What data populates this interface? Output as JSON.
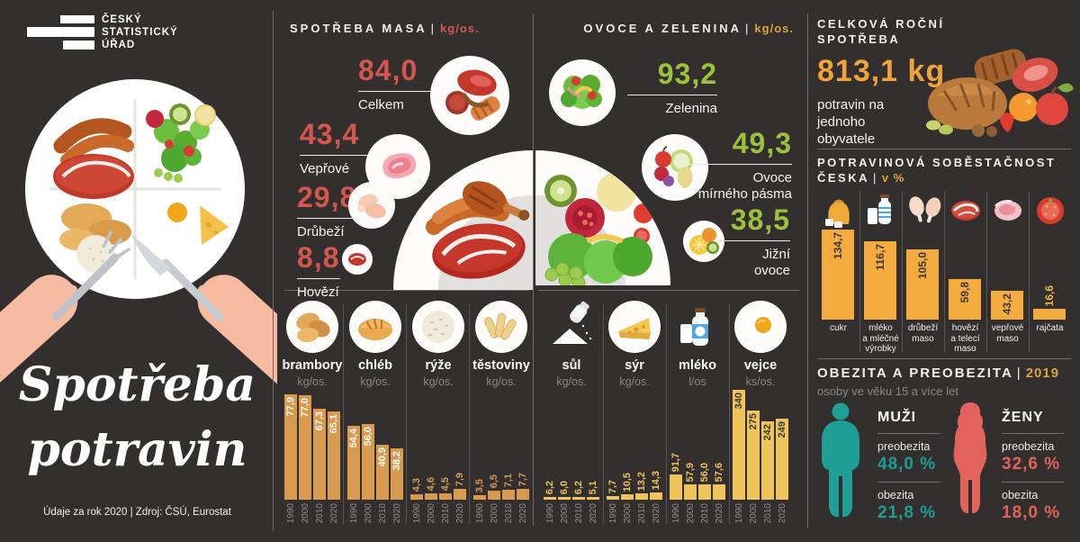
{
  "colors": {
    "background": "#322F2E",
    "red": "#D4574F",
    "green": "#9CC23C",
    "gold": "#EFA33B",
    "bar_orange": "#D89A4F",
    "bar_yellow": "#EFC45B",
    "bar_amber": "#F5AC3E",
    "teal": "#1E9E95",
    "coral": "#E2635C"
  },
  "logo": {
    "line1": "ČESKÝ",
    "line2": "STATISTICKÝ",
    "line3": "ÚŘAD"
  },
  "left": {
    "title_line1": "Spotřeba",
    "title_line2": "potravin",
    "footer": "Údaje za rok 2020 | Zdroj: ČSÚ, Eurostat"
  },
  "meat": {
    "title": "SPOTŘEBA MASA",
    "sep": "|",
    "unit": "kg/os.",
    "items": [
      {
        "value": "84,0",
        "label": "Celkem"
      },
      {
        "value": "43,4",
        "label": "Vepřové"
      },
      {
        "value": "29,8",
        "label": "Drůbeží"
      },
      {
        "value": "8,8",
        "label": "Hovězí"
      }
    ]
  },
  "produce": {
    "title": "OVOCE A ZELENINA",
    "sep": "|",
    "unit": "kg/os.",
    "items": [
      {
        "value": "93,2",
        "label_lines": [
          "Zelenina",
          ""
        ]
      },
      {
        "value": "49,3",
        "label_lines": [
          "Ovoce",
          "mírného pásma"
        ]
      },
      {
        "value": "38,5",
        "label_lines": [
          "Jižní",
          "ovoce"
        ]
      }
    ]
  },
  "annual": {
    "title_line1": "CELKOVÁ ROČNÍ",
    "title_line2": "SPOTŘEBA",
    "value": "813,1 kg",
    "desc": "potravin na jednoho obyvatele"
  },
  "selfsufficiency": {
    "title_line1": "POTRAVINOVÁ SOBĚSTAČNOST",
    "title_line2": "ČESKA",
    "sep": "|",
    "unit": "v %",
    "bars": [
      {
        "id": "cukr",
        "label_lines": [
          "cukr"
        ],
        "value": 134.7,
        "display": "134,7"
      },
      {
        "id": "mleko",
        "label_lines": [
          "mléko",
          "a mléčné",
          "výrobky"
        ],
        "value": 116.7,
        "display": "116,7"
      },
      {
        "id": "drubezi",
        "label_lines": [
          "drůbeží",
          "maso"
        ],
        "value": 105.0,
        "display": "105,0"
      },
      {
        "id": "hovezi",
        "label_lines": [
          "hovězí",
          "a telecí",
          "maso"
        ],
        "value": 59.8,
        "display": "59,8"
      },
      {
        "id": "veprove",
        "label_lines": [
          "vepřové",
          "maso"
        ],
        "value": 43.2,
        "display": "43,2"
      },
      {
        "id": "rajcata",
        "label_lines": [
          "rajčata"
        ],
        "value": 16.6,
        "display": "16,6"
      }
    ]
  },
  "obesity": {
    "title": "OBEZITA A PREOBEZITA",
    "sep": "|",
    "year": "2019",
    "subtitle": "osoby ve věku 15 a více let",
    "men": {
      "name": "MUŽI",
      "pre_label": "preobezita",
      "pre_value": "48,0 %",
      "ob_label": "obezita",
      "ob_value": "21,8 %"
    },
    "women": {
      "name": "ŽENY",
      "pre_label": "preobezita",
      "pre_value": "32,6 %",
      "ob_label": "obezita",
      "ob_value": "18,0 %"
    }
  },
  "mini_charts": {
    "years": [
      "1990",
      "2000",
      "2010",
      "2020"
    ],
    "charts": [
      {
        "id": "brambory",
        "label": "brambory",
        "unit": "kg/os.",
        "values": [
          77.9,
          77.0,
          67.3,
          65.1
        ],
        "labels": [
          "77,9",
          "77,0",
          "67,3",
          "65,1"
        ]
      },
      {
        "id": "chleb",
        "label": "chléb",
        "unit": "kg/os.",
        "values": [
          54.4,
          56.0,
          40.9,
          38.2
        ],
        "labels": [
          "54,4",
          "56,0",
          "40,9",
          "38,2"
        ]
      },
      {
        "id": "ryze",
        "label": "rýže",
        "unit": "kg/os.",
        "values": [
          4.3,
          4.6,
          4.5,
          7.9
        ],
        "labels": [
          "4,3",
          "4,6",
          "4,5",
          "7,9"
        ]
      },
      {
        "id": "testoviny",
        "label": "těstoviny",
        "unit": "kg/os.",
        "values": [
          3.5,
          6.5,
          7.1,
          7.7
        ],
        "labels": [
          "3,5",
          "6,5",
          "7,1",
          "7,7"
        ]
      },
      {
        "id": "sul",
        "label": "sůl",
        "unit": "kg/os.",
        "values": [
          6.2,
          6.0,
          6.2,
          5.1
        ],
        "labels": [
          "6,2",
          "6,0",
          "6,2",
          "5,1"
        ]
      },
      {
        "id": "syr",
        "label": "sýr",
        "unit": "kg/os.",
        "values": [
          7.7,
          10.5,
          13.2,
          14.3
        ],
        "labels": [
          "7,7",
          "10,5",
          "13,2",
          "14,3"
        ]
      },
      {
        "id": "mleko",
        "label": "mléko",
        "unit": "l/os",
        "values": [
          91.7,
          57.9,
          56.0,
          57.6
        ],
        "labels": [
          "91,7",
          "57,9",
          "56,0",
          "57,6"
        ]
      },
      {
        "id": "vejce",
        "label": "vejce",
        "unit": "ks/os.",
        "values": [
          340,
          275,
          242,
          249
        ],
        "labels": [
          "340",
          "275",
          "242",
          "249"
        ]
      }
    ]
  },
  "chart_data": [
    {
      "type": "bar",
      "title": "Spotřeba masa",
      "ylabel": "kg/os.",
      "categories": [
        "Celkem",
        "Vepřové",
        "Drůbeží",
        "Hovězí"
      ],
      "values": [
        84.0,
        43.4,
        29.8,
        8.8
      ]
    },
    {
      "type": "bar",
      "title": "Ovoce a zelenina",
      "ylabel": "kg/os.",
      "categories": [
        "Zelenina",
        "Ovoce mírného pásma",
        "Jižní ovoce"
      ],
      "values": [
        93.2,
        49.3,
        38.5
      ]
    },
    {
      "type": "bar",
      "title": "Potravinová soběstačnost Česka",
      "ylabel": "%",
      "categories": [
        "cukr",
        "mléko a mléčné výrobky",
        "drůbeží maso",
        "hovězí a telecí maso",
        "vepřové maso",
        "rajčata"
      ],
      "values": [
        134.7,
        116.7,
        105.0,
        59.8,
        43.2,
        16.6
      ]
    },
    {
      "type": "bar",
      "title": "brambory",
      "ylabel": "kg/os.",
      "categories": [
        "1990",
        "2000",
        "2010",
        "2020"
      ],
      "values": [
        77.9,
        77.0,
        67.3,
        65.1
      ]
    },
    {
      "type": "bar",
      "title": "chléb",
      "ylabel": "kg/os.",
      "categories": [
        "1990",
        "2000",
        "2010",
        "2020"
      ],
      "values": [
        54.4,
        56.0,
        40.9,
        38.2
      ]
    },
    {
      "type": "bar",
      "title": "rýže",
      "ylabel": "kg/os.",
      "categories": [
        "1990",
        "2000",
        "2010",
        "2020"
      ],
      "values": [
        4.3,
        4.6,
        4.5,
        7.9
      ]
    },
    {
      "type": "bar",
      "title": "těstoviny",
      "ylabel": "kg/os.",
      "categories": [
        "1990",
        "2000",
        "2010",
        "2020"
      ],
      "values": [
        3.5,
        6.5,
        7.1,
        7.7
      ]
    },
    {
      "type": "bar",
      "title": "sůl",
      "ylabel": "kg/os.",
      "categories": [
        "1990",
        "2000",
        "2010",
        "2020"
      ],
      "values": [
        6.2,
        6.0,
        6.2,
        5.1
      ]
    },
    {
      "type": "bar",
      "title": "sýr",
      "ylabel": "kg/os.",
      "categories": [
        "1990",
        "2000",
        "2010",
        "2020"
      ],
      "values": [
        7.7,
        10.5,
        13.2,
        14.3
      ]
    },
    {
      "type": "bar",
      "title": "mléko",
      "ylabel": "l/os",
      "categories": [
        "1990",
        "2000",
        "2010",
        "2020"
      ],
      "values": [
        91.7,
        57.9,
        56.0,
        57.6
      ]
    },
    {
      "type": "bar",
      "title": "vejce",
      "ylabel": "ks/os.",
      "categories": [
        "1990",
        "2000",
        "2010",
        "2020"
      ],
      "values": [
        340,
        275,
        242,
        249
      ]
    },
    {
      "type": "table",
      "title": "Celková roční spotřeba",
      "values": [
        [
          "potravin na jednoho obyvatele",
          "813,1 kg"
        ]
      ]
    },
    {
      "type": "table",
      "title": "Obezita a preobezita 2019",
      "values": [
        [
          "muži preobezita",
          "48,0 %"
        ],
        [
          "muži obezita",
          "21,8 %"
        ],
        [
          "ženy preobezita",
          "32,6 %"
        ],
        [
          "ženy obezita",
          "18,0 %"
        ]
      ]
    }
  ]
}
